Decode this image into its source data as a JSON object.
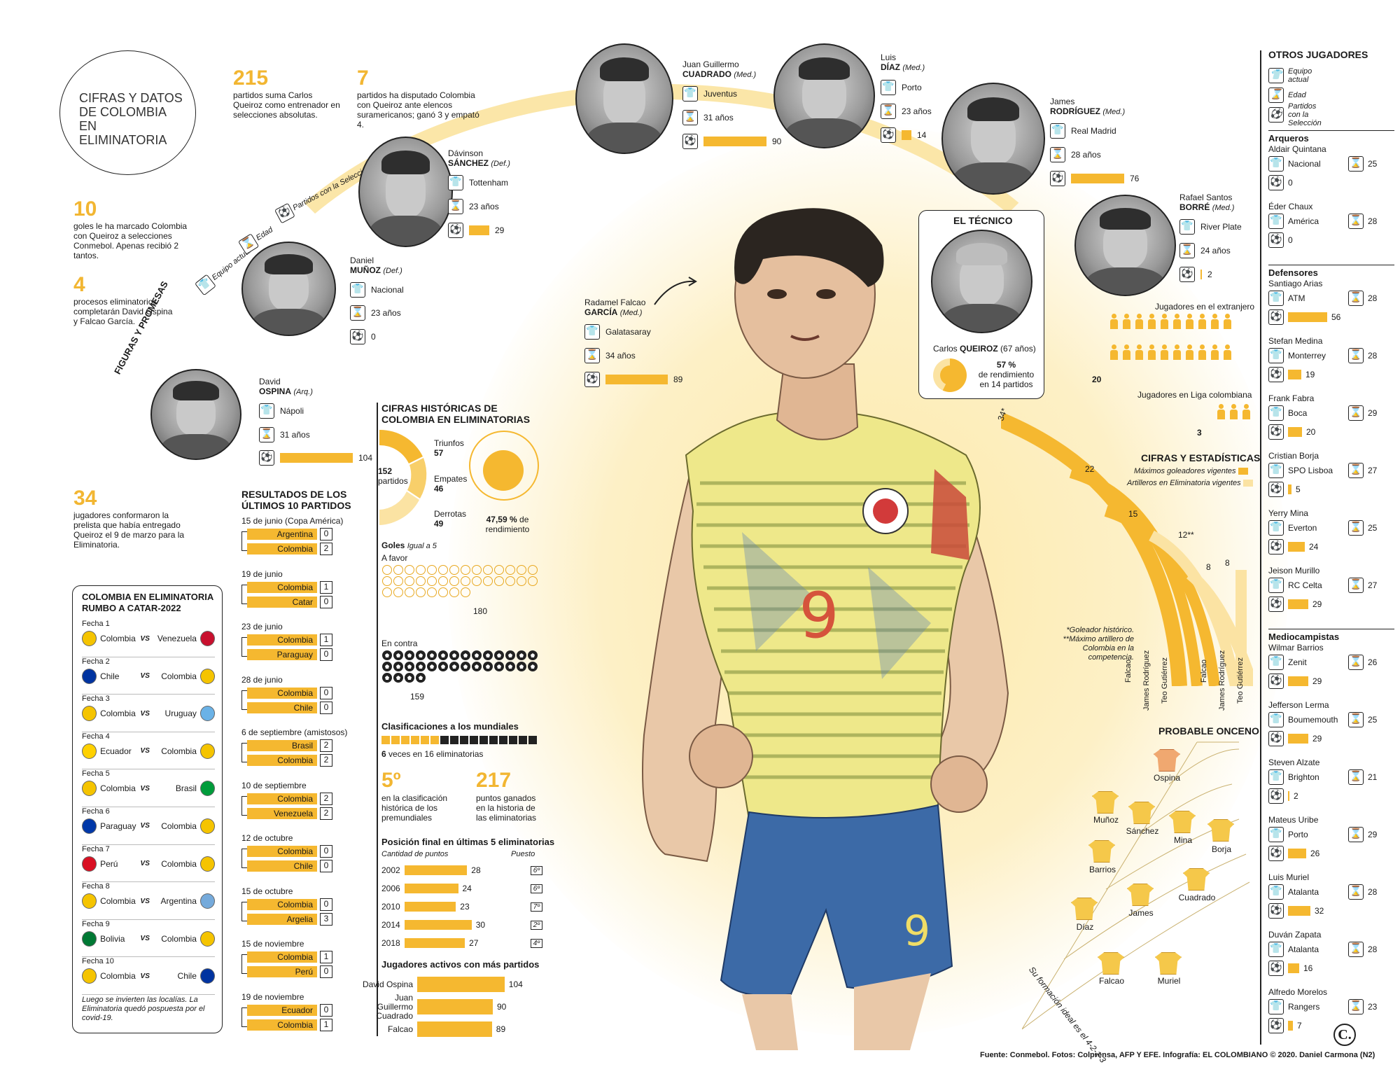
{
  "header": {
    "title": "CIFRAS Y DATOS DE COLOMBIA EN ELIMINATORIA"
  },
  "facts": [
    {
      "num": "215",
      "text": "partidos suma Carlos Queiroz como entrenador en selecciones absolutas."
    },
    {
      "num": "7",
      "text": "partidos ha disputado Colombia con Queiroz ante elencos suramericanos; ganó 3 y empató 4."
    },
    {
      "num": "10",
      "text": "goles le ha marcado Colombia con Queiroz a selecciones Conmebol. Apenas recibió 2 tantos."
    },
    {
      "num": "4",
      "text": "procesos eliminatorios completarán David Ospina y Falcao García."
    },
    {
      "num": "34",
      "text": "jugadores conformaron la prelista que había entregado Queiroz el 9 de marzo para la Eliminatoria."
    }
  ],
  "arc_legend": {
    "label": "FIGURAS Y PROMESAS",
    "equipo": "Equipo actual",
    "edad": "Edad",
    "partidos": "Partidos con la Selección"
  },
  "figures": [
    {
      "first": "David",
      "last": "OSPINA",
      "pos": "(Arq.)",
      "team": "Nápoli",
      "age": "31 años",
      "games": 104
    },
    {
      "first": "Daniel",
      "last": "MUÑOZ",
      "pos": "(Def.)",
      "team": "Nacional",
      "age": "23 años",
      "games": 0
    },
    {
      "first": "Dávinson",
      "last": "SÁNCHEZ",
      "pos": "(Def.)",
      "team": "Tottenham",
      "age": "23 años",
      "games": 29
    },
    {
      "first": "Juan Guillermo",
      "last": "CUADRADO",
      "pos": "(Med.)",
      "team": "Juventus",
      "age": "31 años",
      "games": 90
    },
    {
      "first": "Luis",
      "last": "DÍAZ",
      "pos": "(Med.)",
      "team": "Porto",
      "age": "23 años",
      "games": 14
    },
    {
      "first": "James",
      "last": "RODRÍGUEZ",
      "pos": "(Med.)",
      "team": "Real Madrid",
      "age": "28 años",
      "games": 76
    },
    {
      "first": "Rafael Santos",
      "last": "BORRÉ",
      "pos": "(Med.)",
      "team": "River Plate",
      "age": "24 años",
      "games": 2
    },
    {
      "first": "Radamel Falcao",
      "last": "GARCÍA",
      "pos": "(Med.)",
      "team": "Galatasaray",
      "age": "34 años",
      "games": 89
    }
  ],
  "coach": {
    "title": "EL TÉCNICO",
    "name": "Carlos",
    "last": "QUEIROZ",
    "age": "(67 años)",
    "pct": "57 %",
    "pct_text": "de rendimiento en 14 partidos"
  },
  "players_abroad": {
    "label_ext": "Jugadores en el extranjero",
    "count_ext": "20",
    "label_local": "Jugadores en Liga colombiana",
    "count_local": "3"
  },
  "historic": {
    "title": "CIFRAS HISTÓRICAS DE COLOMBIA EN ELIMINATORIAS",
    "games": "152",
    "games_label": "partidos",
    "wins_label": "Triunfos",
    "wins": "57",
    "draws_label": "Empates",
    "draws": "46",
    "losses_label": "Derrotas",
    "losses": "49",
    "pct": "47,59 %",
    "pct_label": "de rendimiento"
  },
  "goals": {
    "title": "Goles",
    "legend": "Igual a 5",
    "favor_label": "A favor",
    "favor": "180",
    "contra_label": "En contra",
    "contra": "159"
  },
  "worldcups": {
    "title": "Clasificaciones a los mundiales",
    "text_num": "6",
    "text": "veces en 16 eliminatorias"
  },
  "rank": {
    "num": "5º",
    "text": "en la clasificación histórica de los premundiales",
    "pts": "217",
    "pts_text": "puntos ganados en la historia de las eliminatorias"
  },
  "final_pos": {
    "title": "Posición final en últimas 5 eliminatorias",
    "col_a": "Cantidad de puntos",
    "col_b": "Puesto",
    "rows": [
      {
        "year": "2002",
        "pts": "28",
        "pos": "6º"
      },
      {
        "year": "2006",
        "pts": "24",
        "pos": "6º"
      },
      {
        "year": "2010",
        "pts": "23",
        "pos": "7º"
      },
      {
        "year": "2014",
        "pts": "30",
        "pos": "2º"
      },
      {
        "year": "2018",
        "pts": "27",
        "pos": "4º"
      }
    ]
  },
  "active": {
    "title": "Jugadores activos con más partidos",
    "rows": [
      {
        "name": "David Ospina",
        "val": "104"
      },
      {
        "name": "Juan Guillermo Cuadrado",
        "val": "90"
      },
      {
        "name": "Falcao",
        "val": "89"
      }
    ]
  },
  "results": {
    "title": "RESULTADOS DE LOS ÚLTIMOS 10 PARTIDOS",
    "matches": [
      {
        "date": "15 de junio (Copa América)",
        "a": "Argentina",
        "sa": "0",
        "b": "Colombia",
        "sb": "2"
      },
      {
        "date": "19 de junio",
        "a": "Colombia",
        "sa": "1",
        "b": "Catar",
        "sb": "0"
      },
      {
        "date": "23 de junio",
        "a": "Colombia",
        "sa": "1",
        "b": "Paraguay",
        "sb": "0"
      },
      {
        "date": "28 de junio",
        "a": "Colombia",
        "sa": "0",
        "b": "Chile",
        "sb": "0"
      },
      {
        "date": "6 de septiembre (amistosos)",
        "a": "Brasil",
        "sa": "2",
        "b": "Colombia",
        "sb": "2"
      },
      {
        "date": "10 de septiembre",
        "a": "Colombia",
        "sa": "2",
        "b": "Venezuela",
        "sb": "2"
      },
      {
        "date": "12 de octubre",
        "a": "Colombia",
        "sa": "0",
        "b": "Chile",
        "sb": "0"
      },
      {
        "date": "15 de octubre",
        "a": "Colombia",
        "sa": "0",
        "b": "Argelia",
        "sb": "3"
      },
      {
        "date": "15 de noviembre",
        "a": "Colombia",
        "sa": "1",
        "b": "Perú",
        "sb": "0"
      },
      {
        "date": "19 de noviembre",
        "a": "Ecuador",
        "sa": "0",
        "b": "Colombia",
        "sb": "1"
      }
    ]
  },
  "fixtures": {
    "title": "COLOMBIA EN ELIMINATORIA RUMBO A CATAR-2022",
    "vs": "VS",
    "rows": [
      {
        "fecha": "Fecha 1",
        "a": "Colombia",
        "b": "Venezuela",
        "ca": "#f5c400",
        "cb": "#c8102e"
      },
      {
        "fecha": "Fecha 2",
        "a": "Chile",
        "b": "Colombia",
        "ca": "#0033a0",
        "cb": "#f5c400"
      },
      {
        "fecha": "Fecha 3",
        "a": "Colombia",
        "b": "Uruguay",
        "ca": "#f5c400",
        "cb": "#6ab2e7"
      },
      {
        "fecha": "Fecha 4",
        "a": "Ecuador",
        "b": "Colombia",
        "ca": "#ffd100",
        "cb": "#f5c400"
      },
      {
        "fecha": "Fecha 5",
        "a": "Colombia",
        "b": "Brasil",
        "ca": "#f5c400",
        "cb": "#009c3b"
      },
      {
        "fecha": "Fecha 6",
        "a": "Paraguay",
        "b": "Colombia",
        "ca": "#0038a8",
        "cb": "#f5c400"
      },
      {
        "fecha": "Fecha 7",
        "a": "Perú",
        "b": "Colombia",
        "ca": "#d91023",
        "cb": "#f5c400"
      },
      {
        "fecha": "Fecha 8",
        "a": "Colombia",
        "b": "Argentina",
        "ca": "#f5c400",
        "cb": "#75aadb"
      },
      {
        "fecha": "Fecha 9",
        "a": "Bolivia",
        "b": "Colombia",
        "ca": "#007934",
        "cb": "#f5c400"
      },
      {
        "fecha": "Fecha 10",
        "a": "Colombia",
        "b": "Chile",
        "ca": "#f5c400",
        "cb": "#0033a0"
      }
    ],
    "note": "Luego se invierten las localías. La Eliminatoria quedó pospuesta por el covid-19."
  },
  "stats": {
    "title": "CIFRAS Y ESTADÍSTICAS",
    "legend_a": "Máximos goleadores vigentes",
    "legend_b": "Artilleros en Eliminatoria vigentes",
    "note": "*Goleador histórico. **Máximo artillero de Colombia en la competencia.",
    "a": [
      {
        "name": "Falcao",
        "val": "34*"
      },
      {
        "name": "James Rodríguez",
        "val": "22"
      },
      {
        "name": "Teo Gutiérrez",
        "val": "15"
      }
    ],
    "b": [
      {
        "name": "Falcao",
        "val": "12**"
      },
      {
        "name": "James Rodríguez",
        "val": "8"
      },
      {
        "name": "Teo Gutiérrez",
        "val": "8"
      }
    ]
  },
  "onceno": {
    "title": "PROBABLE ONCENO",
    "formation": "Su formación ideal es el 4-2-1-3",
    "players": [
      "Ospina",
      "Muñoz",
      "Sánchez",
      "Mina",
      "Borja",
      "Barrios",
      "Cuadrado",
      "James",
      "Díaz",
      "Falcao",
      "Muriel"
    ]
  },
  "others": {
    "title": "OTROS JUGADORES",
    "legend": [
      "Equipo actual",
      "Edad",
      "Partidos con la Selección"
    ],
    "groups": [
      {
        "name": "Arqueros",
        "players": [
          {
            "name": "Aldair Quintana",
            "team": "Nacional",
            "age": "25",
            "games": "0"
          },
          {
            "name": "Éder Chaux",
            "team": "América",
            "age": "28",
            "games": "0"
          }
        ]
      },
      {
        "name": "Defensores",
        "players": [
          {
            "name": "Santiago Arias",
            "team": "ATM",
            "age": "28",
            "games": "56"
          },
          {
            "name": "Stefan Medina",
            "team": "Monterrey",
            "age": "28",
            "games": "19"
          },
          {
            "name": "Frank Fabra",
            "team": "Boca",
            "age": "29",
            "games": "20"
          },
          {
            "name": "Cristian Borja",
            "team": "SPO Lisboa",
            "age": "27",
            "games": "5"
          },
          {
            "name": "Yerry Mina",
            "team": "Everton",
            "age": "25",
            "games": "24"
          },
          {
            "name": "Jeison Murillo",
            "team": "RC Celta",
            "age": "27",
            "games": "29"
          }
        ]
      },
      {
        "name": "Mediocampistas",
        "players": [
          {
            "name": "Wilmar Barrios",
            "team": "Zenit",
            "age": "26",
            "games": "29"
          },
          {
            "name": "Jefferson Lerma",
            "team": "Boumemouth",
            "age": "25",
            "games": "29"
          },
          {
            "name": "Steven Alzate",
            "team": "Brighton",
            "age": "21",
            "games": "2"
          },
          {
            "name": "Mateus Uribe",
            "team": "Porto",
            "age": "29",
            "games": "26"
          },
          {
            "name": "Luis Muriel",
            "team": "Atalanta",
            "age": "28",
            "games": "32"
          },
          {
            "name": "Duván Zapata",
            "team": "Atalanta",
            "age": "28",
            "games": "16"
          },
          {
            "name": "Alfredo Morelos",
            "team": "Rangers",
            "age": "23",
            "games": "7"
          }
        ]
      }
    ]
  },
  "footer": {
    "credits": "Fuente: Conmebol. Fotos: Colprensa, AFP Y EFE. Infografía: EL COLOMBIANO © 2020. Daniel Carmona (N2)",
    "logo": "C."
  },
  "colors": {
    "accent": "#f5b830",
    "light": "#fbe3a3",
    "text": "#1a1a1a"
  }
}
